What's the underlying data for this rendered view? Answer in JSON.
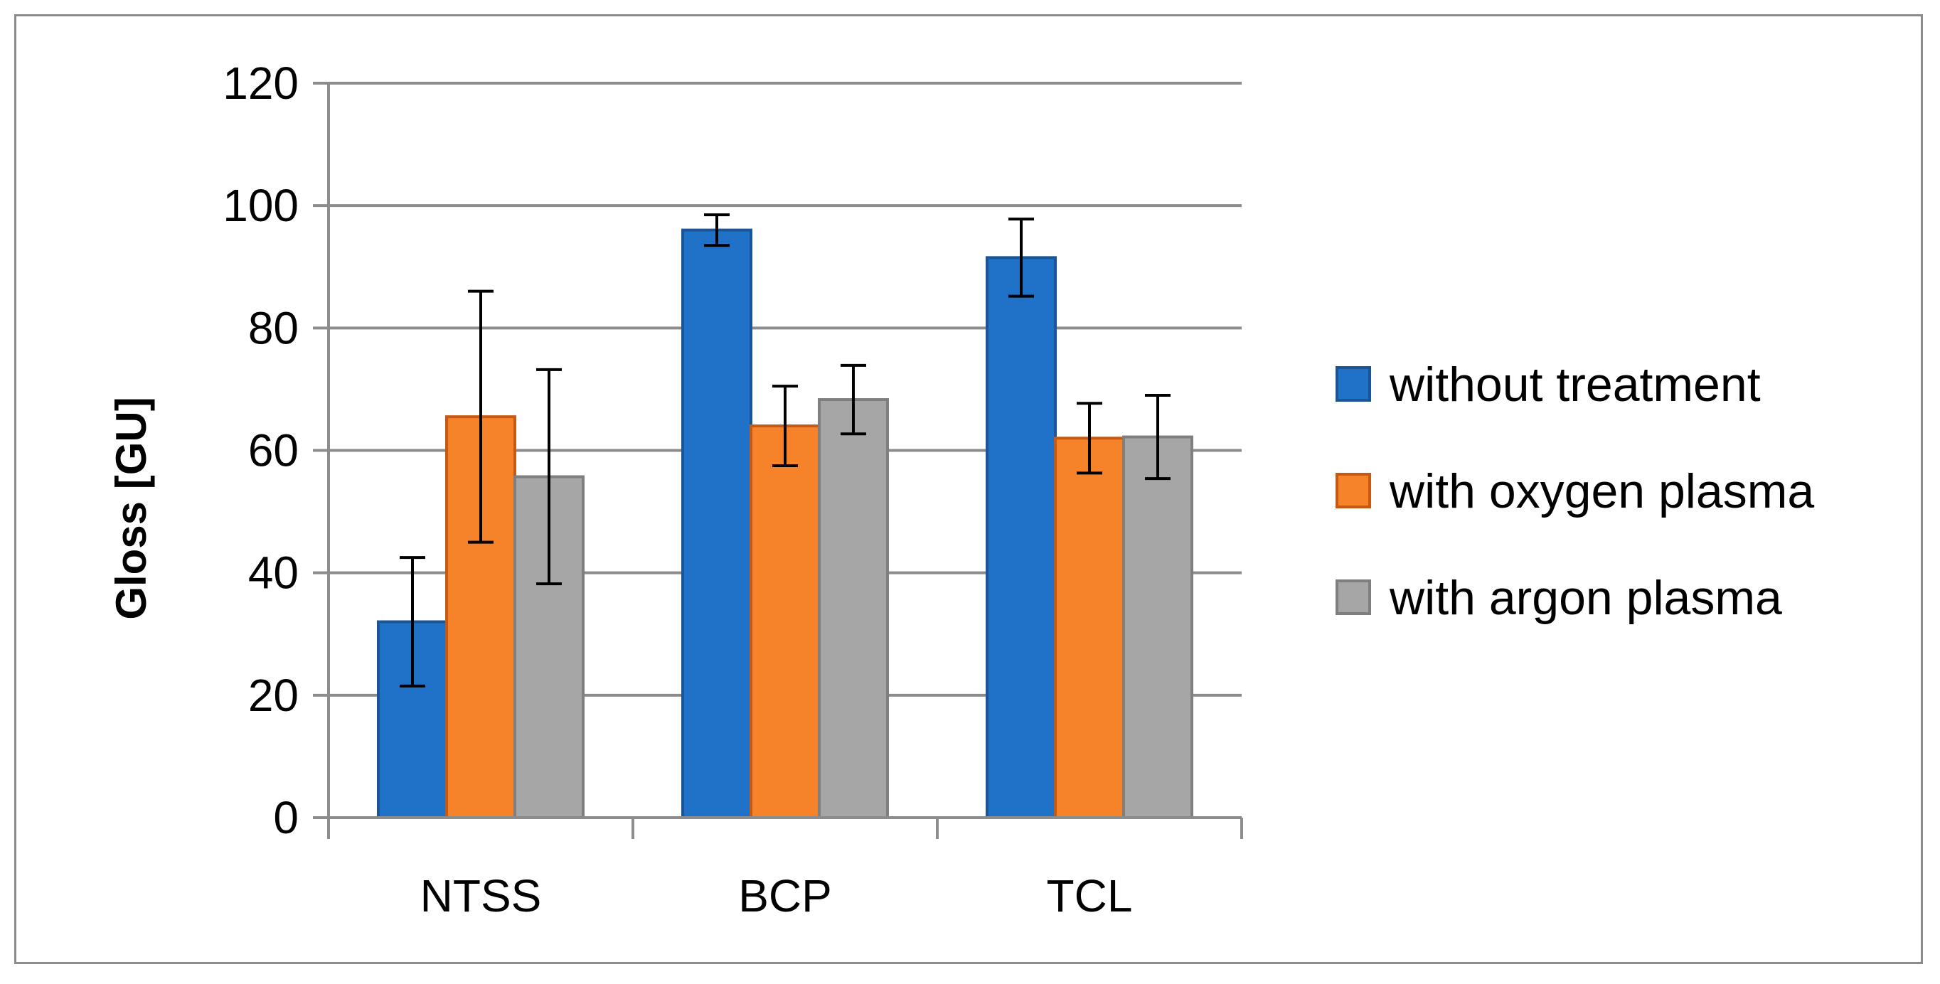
{
  "chart_data": {
    "type": "bar",
    "title": "",
    "xlabel": "",
    "ylabel": "Gloss [GU]",
    "ylim": [
      0,
      120
    ],
    "yticks": [
      0,
      20,
      40,
      60,
      80,
      100,
      120
    ],
    "grid": true,
    "legend_position": "right",
    "categories": [
      "NTSS",
      "BCP",
      "TCL"
    ],
    "series": [
      {
        "name": "without treatment",
        "color": "#1f72c8",
        "edge": "#1a5596",
        "values": [
          32,
          96,
          91.5
        ],
        "errors": [
          10.5,
          2.5,
          6.3
        ]
      },
      {
        "name": "with oxygen plasma",
        "color": "#f6822a",
        "edge": "#c65a12",
        "values": [
          65.5,
          64,
          62
        ],
        "errors": [
          20.5,
          6.5,
          5.7
        ]
      },
      {
        "name": "with argon plasma",
        "color": "#a6a6a6",
        "edge": "#7f7f7f",
        "values": [
          55.7,
          68.3,
          62.2
        ],
        "errors": [
          17.5,
          5.6,
          6.8
        ]
      }
    ]
  }
}
